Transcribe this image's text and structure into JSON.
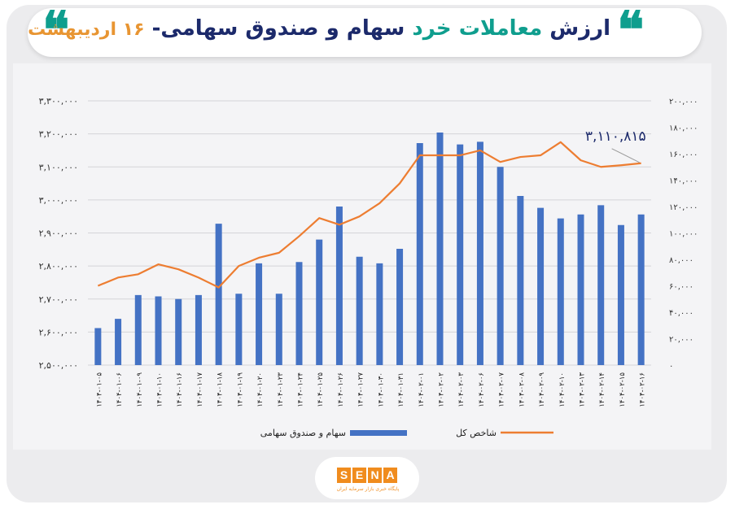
{
  "header": {
    "title_part1": "ارزش",
    "title_accent": "معاملات خرد",
    "title_part2": "سهام و صندوق سهامی-",
    "title_date": "۱۶ اردیبهشت",
    "quote_glyph": "❝",
    "accent_color": "#0f9e8e",
    "title_color": "#1c2a6b",
    "date_color": "#e89532"
  },
  "logo": {
    "letters": [
      "S",
      "E",
      "N",
      "A"
    ],
    "tagline": "پایگاه خبری بازار سرمایه ایران"
  },
  "chart_data": {
    "type": "bar",
    "categories": [
      "۱۴۰۴-۰۱-۰۵",
      "۱۴۰۴-۰۱-۰۶",
      "۱۴۰۴-۰۱-۰۹",
      "۱۴۰۴-۰۱-۱۰",
      "۱۴۰۴-۰۱-۱۶",
      "۱۴۰۴-۰۱-۱۷",
      "۱۴۰۴-۰۱-۱۸",
      "۱۴۰۴-۰۱-۱۹",
      "۱۴۰۴-۰۱-۲۰",
      "۱۴۰۴-۰۱-۲۳",
      "۱۴۰۴-۰۱-۲۴",
      "۱۴۰۴-۰۱-۲۵",
      "۱۴۰۴-۰۱-۲۶",
      "۱۴۰۴-۰۱-۲۷",
      "۱۴۰۴-۰۱-۳۰",
      "۱۴۰۴-۰۱-۳۱",
      "۱۴۰۴-۰۲-۰۱",
      "۱۴۰۴-۰۲-۰۲",
      "۱۴۰۴-۰۲-۰۳",
      "۱۴۰۴-۰۲-۰۶",
      "۱۴۰۴-۰۲-۰۷",
      "۱۴۰۴-۰۲-۰۸",
      "۱۴۰۴-۰۲-۰۹",
      "۱۴۰۴-۰۲-۱۰",
      "۱۴۰۴-۰۲-۱۳",
      "۱۴۰۴-۰۲-۱۴",
      "۱۴۰۴-۰۲-۱۵",
      "۱۴۰۴-۰۲-۱۶"
    ],
    "series": [
      {
        "name": "سهام و صندوق سهامی",
        "kind": "bar",
        "axis": "right",
        "color": "#4472c4",
        "values": [
          28000,
          35000,
          53000,
          52000,
          50000,
          53000,
          107000,
          54000,
          77000,
          54000,
          78000,
          95000,
          120000,
          82000,
          77000,
          88000,
          168000,
          176000,
          167000,
          169000,
          150000,
          128000,
          119000,
          111000,
          114000,
          121000,
          106000,
          114000
        ]
      },
      {
        "name": "شاخص کل",
        "kind": "line",
        "axis": "left",
        "color": "#ed7d31",
        "values": [
          2740000,
          2765000,
          2775000,
          2805000,
          2790000,
          2765000,
          2735000,
          2800000,
          2825000,
          2840000,
          2890000,
          2945000,
          2925000,
          2950000,
          2990000,
          3050000,
          3135000,
          3135000,
          3135000,
          3150000,
          3115000,
          3130000,
          3135000,
          3175000,
          3120000,
          3100000,
          3105000,
          3111000
        ]
      }
    ],
    "y_left": {
      "ylim": [
        2500000,
        3300000
      ],
      "ticks": [
        2500000,
        2600000,
        2700000,
        2800000,
        2900000,
        3000000,
        3100000,
        3200000,
        3300000
      ],
      "tick_labels": [
        "۲,۵۰۰,۰۰۰",
        "۲,۶۰۰,۰۰۰",
        "۲,۷۰۰,۰۰۰",
        "۲,۸۰۰,۰۰۰",
        "۲,۹۰۰,۰۰۰",
        "۳,۰۰۰,۰۰۰",
        "۳,۱۰۰,۰۰۰",
        "۳,۲۰۰,۰۰۰",
        "۳,۳۰۰,۰۰۰"
      ]
    },
    "y_right": {
      "ylim": [
        0,
        200000
      ],
      "ticks": [
        0,
        20000,
        40000,
        60000,
        80000,
        100000,
        120000,
        140000,
        160000,
        180000,
        200000
      ],
      "tick_labels": [
        "۰",
        "۲۰,۰۰۰",
        "۴۰,۰۰۰",
        "۶۰,۰۰۰",
        "۸۰,۰۰۰",
        "۱۰۰,۰۰۰",
        "۱۲۰,۰۰۰",
        "۱۴۰,۰۰۰",
        "۱۶۰,۰۰۰",
        "۱۸۰,۰۰۰",
        "۲۰۰,۰۰۰"
      ]
    },
    "annotation": {
      "text": "۳,۱۱۰,۸۱۵",
      "point_index": 27,
      "color": "#1c2a6b"
    },
    "grid": true,
    "legend": {
      "position": "bottom"
    }
  }
}
